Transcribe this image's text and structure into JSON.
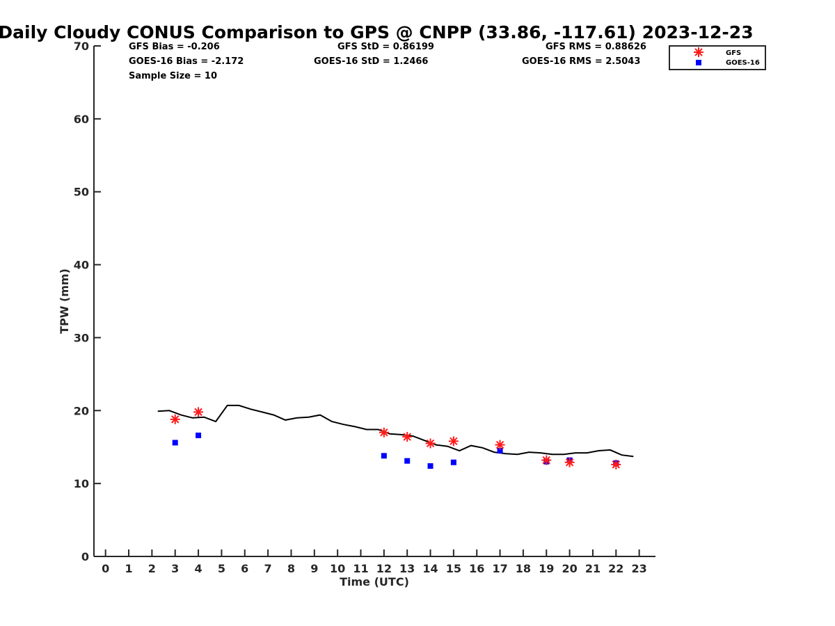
{
  "chart_data": {
    "type": "scatter",
    "title": "Daily Cloudy CONUS Comparison to GPS @ CNPP (33.86, -117.61) 2023-12-23",
    "xlabel": "Time (UTC)",
    "ylabel": "TPW (mm)",
    "xlim": [
      -0.5,
      23.7
    ],
    "ylim": [
      0,
      70
    ],
    "xticks": [
      "0",
      "1",
      "2",
      "3",
      "4",
      "5",
      "6",
      "7",
      "8",
      "9",
      "10",
      "11",
      "12",
      "13",
      "14",
      "15",
      "16",
      "17",
      "18",
      "19",
      "20",
      "21",
      "22",
      "23"
    ],
    "yticks": [
      "0",
      "10",
      "20",
      "30",
      "40",
      "50",
      "60",
      "70"
    ],
    "grid": false,
    "legend_position": "top-right",
    "stats": {
      "gfs_bias": "GFS Bias = -0.206",
      "gfs_std": "GFS StD = 0.86199",
      "gfs_rms": "GFS RMS = 0.88626",
      "goes_bias": "GOES-16 Bias = -2.172",
      "goes_std": "GOES-16 StD = 1.2466",
      "goes_rms": "GOES-16 RMS = 2.5043",
      "sample_size": "Sample Size = 10"
    },
    "series": [
      {
        "name": "GFS",
        "style": "star",
        "color": "#ff1a1a",
        "points": [
          [
            3,
            18.8
          ],
          [
            4,
            19.8
          ],
          [
            12,
            17.0
          ],
          [
            13,
            16.4
          ],
          [
            14,
            15.5
          ],
          [
            15,
            15.8
          ],
          [
            17,
            15.3
          ],
          [
            19,
            13.2
          ],
          [
            20,
            12.9
          ],
          [
            22,
            12.6
          ]
        ]
      },
      {
        "name": "GOES-16",
        "style": "square",
        "color": "#0000ff",
        "points": [
          [
            3,
            15.6
          ],
          [
            4,
            16.6
          ],
          [
            12,
            13.8
          ],
          [
            13,
            13.1
          ],
          [
            14,
            12.4
          ],
          [
            15,
            12.9
          ],
          [
            17,
            14.5
          ],
          [
            19,
            13.0
          ],
          [
            20,
            13.2
          ],
          [
            22,
            12.8
          ]
        ]
      },
      {
        "style": "line",
        "color": "#000000",
        "points": [
          [
            2.25,
            19.9
          ],
          [
            2.75,
            20.0
          ],
          [
            3.25,
            19.4
          ],
          [
            3.75,
            19.0
          ],
          [
            4.25,
            19.1
          ],
          [
            4.75,
            18.5
          ],
          [
            5.25,
            20.7
          ],
          [
            5.75,
            20.7
          ],
          [
            6.25,
            20.2
          ],
          [
            6.75,
            19.8
          ],
          [
            7.25,
            19.4
          ],
          [
            7.75,
            18.7
          ],
          [
            8.25,
            19.0
          ],
          [
            8.75,
            19.1
          ],
          [
            9.25,
            19.4
          ],
          [
            9.75,
            18.5
          ],
          [
            10.25,
            18.1
          ],
          [
            10.75,
            17.8
          ],
          [
            11.25,
            17.4
          ],
          [
            11.75,
            17.4
          ],
          [
            12.25,
            16.8
          ],
          [
            12.75,
            16.7
          ],
          [
            13.25,
            16.5
          ],
          [
            13.75,
            15.9
          ],
          [
            14.25,
            15.3
          ],
          [
            14.75,
            15.1
          ],
          [
            15.25,
            14.5
          ],
          [
            15.75,
            15.2
          ],
          [
            16.25,
            14.9
          ],
          [
            16.75,
            14.3
          ],
          [
            17.25,
            14.1
          ],
          [
            17.75,
            14.0
          ],
          [
            18.25,
            14.3
          ],
          [
            18.75,
            14.2
          ],
          [
            19.25,
            14.0
          ],
          [
            19.75,
            14.0
          ],
          [
            20.25,
            14.2
          ],
          [
            20.75,
            14.2
          ],
          [
            21.25,
            14.5
          ],
          [
            21.75,
            14.6
          ],
          [
            22.25,
            13.9
          ],
          [
            22.75,
            13.7
          ]
        ]
      }
    ]
  }
}
